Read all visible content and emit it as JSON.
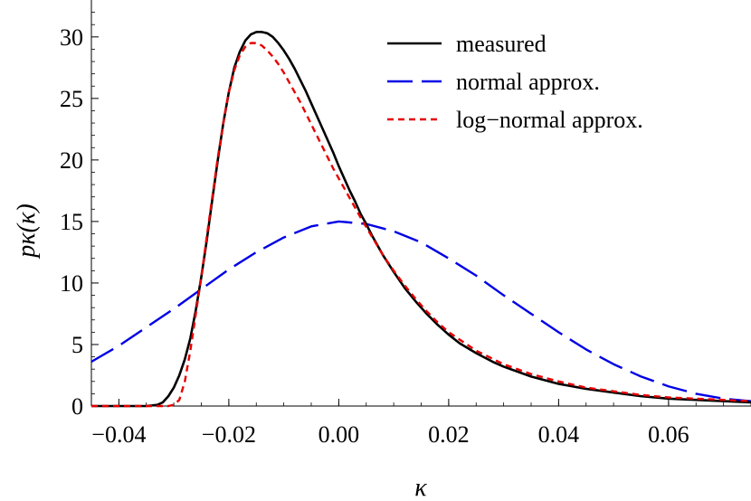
{
  "chart_data": {
    "type": "line",
    "xlabel": "κ",
    "ylabel": "pκ(κ)",
    "xlim": [
      -0.045,
      0.075
    ],
    "ylim": [
      0,
      33
    ],
    "grid": false,
    "legend_position": "top-right",
    "x_ticks": [
      "-0.04",
      "-0.02",
      "0.00",
      "0.02",
      "0.04",
      "0.06"
    ],
    "y_ticks": [
      "0",
      "5",
      "10",
      "15",
      "20",
      "25",
      "30"
    ],
    "series": [
      {
        "name": "measured",
        "color": "#000000",
        "style": "solid",
        "x": [
          -0.045,
          -0.04,
          -0.035,
          -0.033,
          -0.032,
          -0.031,
          -0.03,
          -0.029,
          -0.028,
          -0.027,
          -0.026,
          -0.025,
          -0.024,
          -0.023,
          -0.022,
          -0.021,
          -0.02,
          -0.019,
          -0.018,
          -0.017,
          -0.016,
          -0.015,
          -0.014,
          -0.013,
          -0.012,
          -0.011,
          -0.01,
          -0.009,
          -0.008,
          -0.007,
          -0.006,
          -0.005,
          -0.004,
          -0.003,
          -0.002,
          -0.001,
          0.0,
          0.001,
          0.002,
          0.003,
          0.004,
          0.005,
          0.006,
          0.008,
          0.01,
          0.012,
          0.014,
          0.016,
          0.018,
          0.02,
          0.022,
          0.025,
          0.028,
          0.03,
          0.035,
          0.04,
          0.045,
          0.05,
          0.055,
          0.06,
          0.065,
          0.07,
          0.075
        ],
        "y": [
          0,
          0,
          0,
          0.1,
          0.3,
          0.8,
          1.5,
          2.5,
          3.8,
          5.5,
          7.8,
          10.5,
          13.5,
          16.8,
          20.0,
          23.0,
          25.5,
          27.5,
          28.8,
          29.7,
          30.2,
          30.4,
          30.4,
          30.3,
          30.0,
          29.5,
          28.9,
          28.2,
          27.4,
          26.5,
          25.6,
          24.6,
          23.6,
          22.6,
          21.6,
          20.6,
          19.5,
          18.5,
          17.5,
          16.6,
          15.6,
          14.8,
          13.9,
          12.3,
          10.9,
          9.6,
          8.5,
          7.5,
          6.6,
          5.8,
          5.1,
          4.3,
          3.6,
          3.2,
          2.4,
          1.8,
          1.4,
          1.1,
          0.8,
          0.6,
          0.5,
          0.4,
          0.3
        ]
      },
      {
        "name": "normal approx.",
        "color": "#0000e6",
        "style": "long-dash",
        "x": [
          -0.045,
          -0.04,
          -0.035,
          -0.03,
          -0.025,
          -0.02,
          -0.015,
          -0.01,
          -0.005,
          0.0,
          0.005,
          0.01,
          0.015,
          0.02,
          0.025,
          0.03,
          0.035,
          0.04,
          0.045,
          0.05,
          0.055,
          0.06,
          0.065,
          0.07,
          0.075
        ],
        "y": [
          3.6,
          4.9,
          6.4,
          7.9,
          9.5,
          11.1,
          12.5,
          13.7,
          14.6,
          15.0,
          14.8,
          14.2,
          13.3,
          12.0,
          10.6,
          9.0,
          7.5,
          6.0,
          4.6,
          3.4,
          2.4,
          1.6,
          1.0,
          0.6,
          0.4
        ]
      },
      {
        "name": "log−normal approx.",
        "color": "#e60000",
        "style": "short-dash",
        "x": [
          -0.045,
          -0.035,
          -0.031,
          -0.03,
          -0.029,
          -0.028,
          -0.027,
          -0.026,
          -0.025,
          -0.024,
          -0.023,
          -0.022,
          -0.021,
          -0.02,
          -0.019,
          -0.018,
          -0.017,
          -0.016,
          -0.015,
          -0.014,
          -0.013,
          -0.012,
          -0.011,
          -0.01,
          -0.009,
          -0.008,
          -0.007,
          -0.006,
          -0.005,
          -0.004,
          -0.003,
          -0.002,
          -0.001,
          0.0,
          0.002,
          0.004,
          0.006,
          0.008,
          0.01,
          0.012,
          0.014,
          0.016,
          0.018,
          0.02,
          0.025,
          0.03,
          0.035,
          0.04,
          0.045,
          0.05,
          0.055,
          0.06,
          0.065,
          0.07,
          0.075
        ],
        "y": [
          0,
          0,
          0,
          0.1,
          0.5,
          2.0,
          4.5,
          7.5,
          10.5,
          13.8,
          17.0,
          20.2,
          23.0,
          25.5,
          27.3,
          28.5,
          29.2,
          29.5,
          29.5,
          29.3,
          28.9,
          28.4,
          27.8,
          27.1,
          26.3,
          25.5,
          24.7,
          23.8,
          22.9,
          22.0,
          21.1,
          20.2,
          19.3,
          18.5,
          16.9,
          15.3,
          13.8,
          12.3,
          11.0,
          9.8,
          8.7,
          7.7,
          6.8,
          6.0,
          4.5,
          3.4,
          2.6,
          2.0,
          1.5,
          1.2,
          0.9,
          0.7,
          0.6,
          0.5,
          0.4
        ]
      }
    ]
  }
}
